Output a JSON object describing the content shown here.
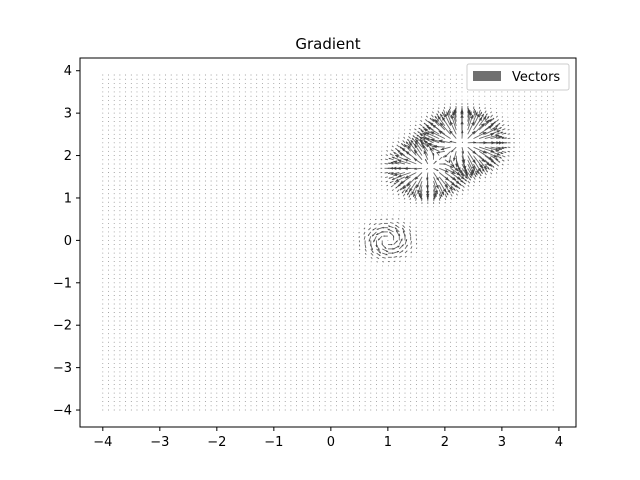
{
  "chart_data": {
    "type": "quiver",
    "title": "Gradient",
    "xlabel": "",
    "ylabel": "",
    "xlim": [
      -4.4,
      4.3
    ],
    "ylim": [
      -4.4,
      4.3
    ],
    "x_ticks": [
      -4,
      -3,
      -2,
      -1,
      0,
      1,
      2,
      3,
      4
    ],
    "y_ticks": [
      -4,
      -3,
      -2,
      -1,
      0,
      1,
      2,
      3,
      4
    ],
    "x_tick_labels": [
      "−4",
      "−3",
      "−2",
      "−1",
      "0",
      "1",
      "2",
      "3",
      "4"
    ],
    "y_tick_labels": [
      "−4",
      "−3",
      "−2",
      "−1",
      "0",
      "1",
      "2",
      "3",
      "4"
    ],
    "grid": false,
    "legend": {
      "position": "top-right",
      "entries": [
        "Vectors"
      ]
    },
    "series": [
      {
        "name": "Vectors",
        "color": "#555555",
        "grid_range": [
          -4,
          3.9
        ],
        "grid_step": 0.1,
        "sources": [
          {
            "center": [
              2.3,
              2.3
            ],
            "spread": 0.32,
            "strength": 1.0,
            "kind": "source"
          },
          {
            "center": [
              1.7,
              1.7
            ],
            "spread": 0.3,
            "strength": 0.9,
            "kind": "source"
          },
          {
            "center": [
              1.0,
              0.0
            ],
            "spread": 0.22,
            "strength": 0.45,
            "kind": "swirl"
          }
        ]
      }
    ]
  }
}
